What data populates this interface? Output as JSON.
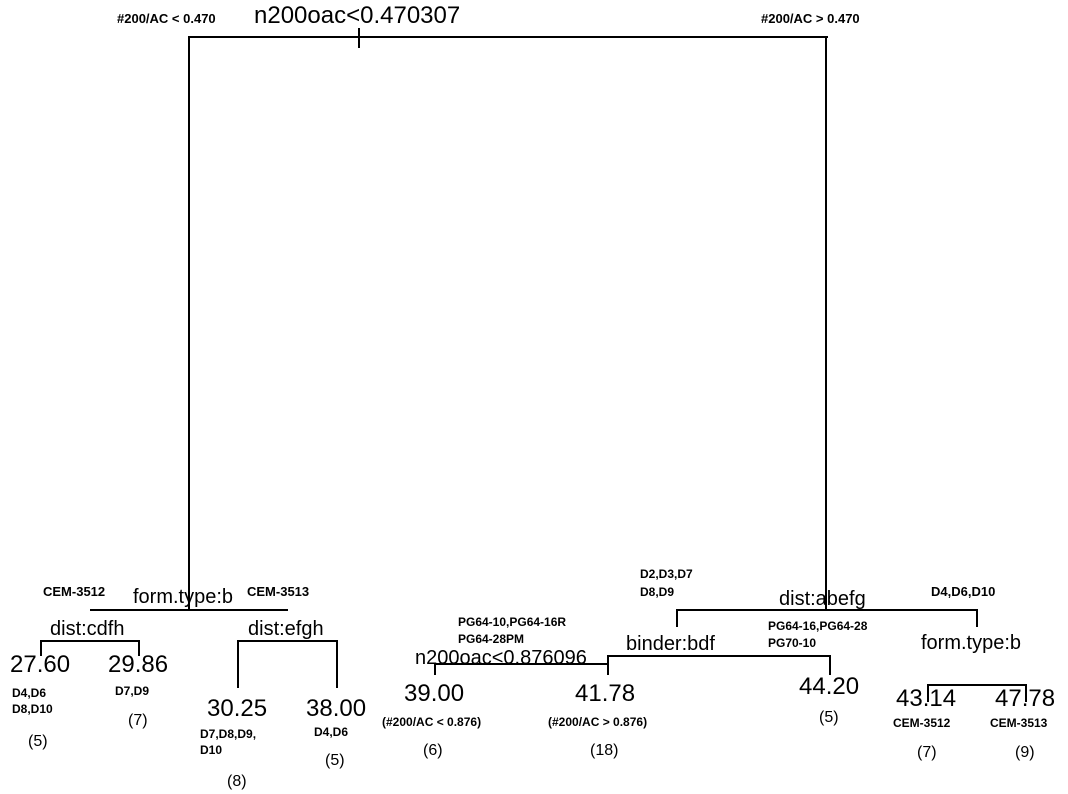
{
  "root": {
    "split": "n200oac<0.470307",
    "left_label": "#200/AC < 0.470",
    "right_label": "#200/AC > 0.470"
  },
  "left": {
    "split": "form.type:b",
    "left_label": "CEM-3512",
    "right_label": "CEM-3513",
    "a": {
      "split": "dist:cdfh",
      "leaf1": {
        "value": "27.60",
        "line1": "D4,D6",
        "line2": "D8,D10",
        "count": "(5)"
      },
      "leaf2": {
        "value": "29.86",
        "line1": "D7,D9",
        "count": "(7)"
      }
    },
    "b": {
      "split": "dist:efgh",
      "leaf1": {
        "value": "30.25",
        "line1": "D7,D8,D9,",
        "line2": "D10",
        "count": "(8)"
      },
      "leaf2": {
        "value": "38.00",
        "line1": "D4,D6",
        "count": "(5)"
      }
    }
  },
  "right": {
    "split": "dist:abefg",
    "left_label_1": "D2,D3,D7",
    "left_label_2": "D8,D9",
    "right_label": "D4,D6,D10",
    "binder": {
      "split": "binder:bdf",
      "left_label_1": "PG64-10,PG64-16R",
      "left_label_2": "PG64-28PM",
      "right_label_1": "PG64-16,PG64-28",
      "right_label_2": "PG70-10",
      "sub": {
        "split": "n200oac<0.876096",
        "leaf1": {
          "value": "39.00",
          "line1": "(#200/AC < 0.876)",
          "count": "(6)"
        },
        "leaf2": {
          "value": "41.78",
          "line1": "(#200/AC > 0.876)",
          "count": "(18)"
        }
      },
      "leaf": {
        "value": "44.20",
        "count": "(5)"
      }
    },
    "form": {
      "split": "form.type:b",
      "leaf1": {
        "value": "43.14",
        "line1": "CEM-3512",
        "count": "(7)"
      },
      "leaf2": {
        "value": "47.78",
        "line1": "CEM-3513",
        "count": "(9)"
      }
    }
  }
}
